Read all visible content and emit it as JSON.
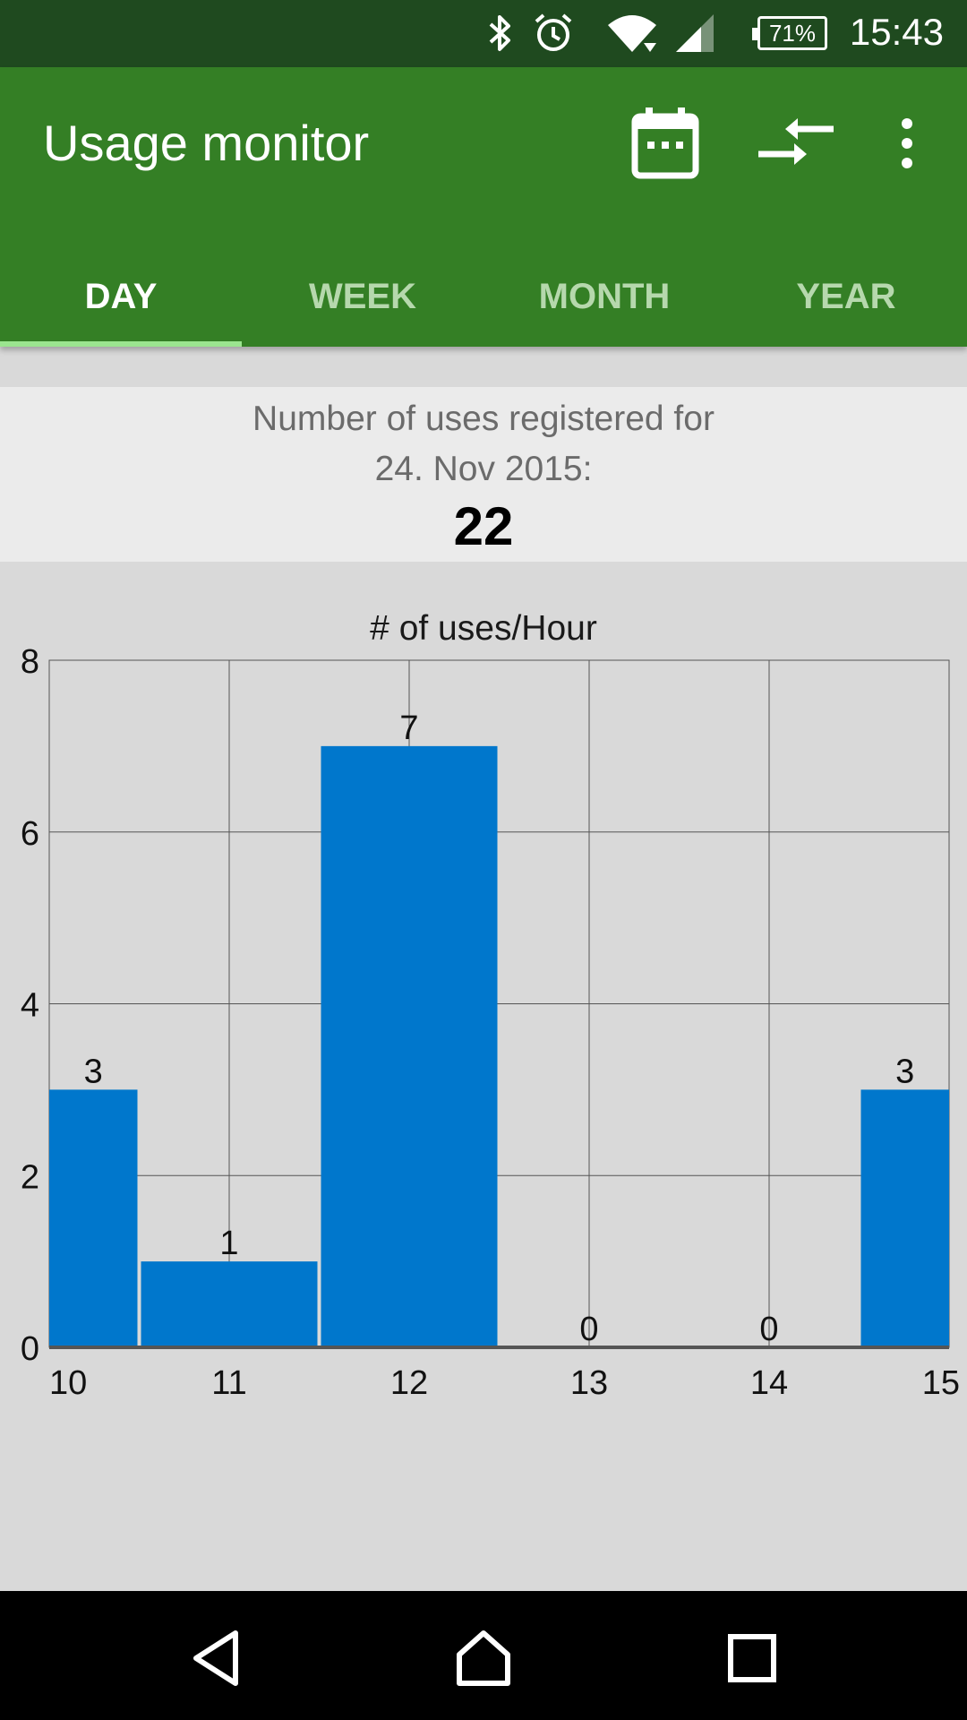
{
  "status_bar": {
    "time": "15:43",
    "battery": "71%",
    "icons": [
      "bluetooth-icon",
      "alarm-icon",
      "wifi-icon",
      "signal-icon",
      "battery-icon"
    ]
  },
  "app_bar": {
    "title": "Usage monitor",
    "actions": [
      "calendar-icon",
      "compare-arrows-icon",
      "more-vert-icon"
    ],
    "color": "#347f25"
  },
  "tabs": [
    {
      "label": "DAY",
      "active": true
    },
    {
      "label": "WEEK",
      "active": false
    },
    {
      "label": "MONTH",
      "active": false
    },
    {
      "label": "YEAR",
      "active": false
    }
  ],
  "summary": {
    "line1": "Number of uses registered for",
    "line2": "24. Nov 2015:",
    "count": "22"
  },
  "chart_data": {
    "type": "bar",
    "title": "# of uses/Hour",
    "categories": [
      "10",
      "11",
      "12",
      "13",
      "14",
      "15"
    ],
    "values": [
      3,
      1,
      7,
      0,
      0,
      3
    ],
    "data_labels": [
      "3",
      "1",
      "7",
      "0",
      "0",
      "3"
    ],
    "y_ticks": [
      "0",
      "2",
      "4",
      "6",
      "8"
    ],
    "ylim": [
      0,
      8
    ],
    "grid": true,
    "bar_color": "#0077cc",
    "xlabel": "",
    "ylabel": ""
  },
  "nav_bar": {
    "buttons": [
      "back-icon",
      "home-icon",
      "recents-icon"
    ]
  }
}
